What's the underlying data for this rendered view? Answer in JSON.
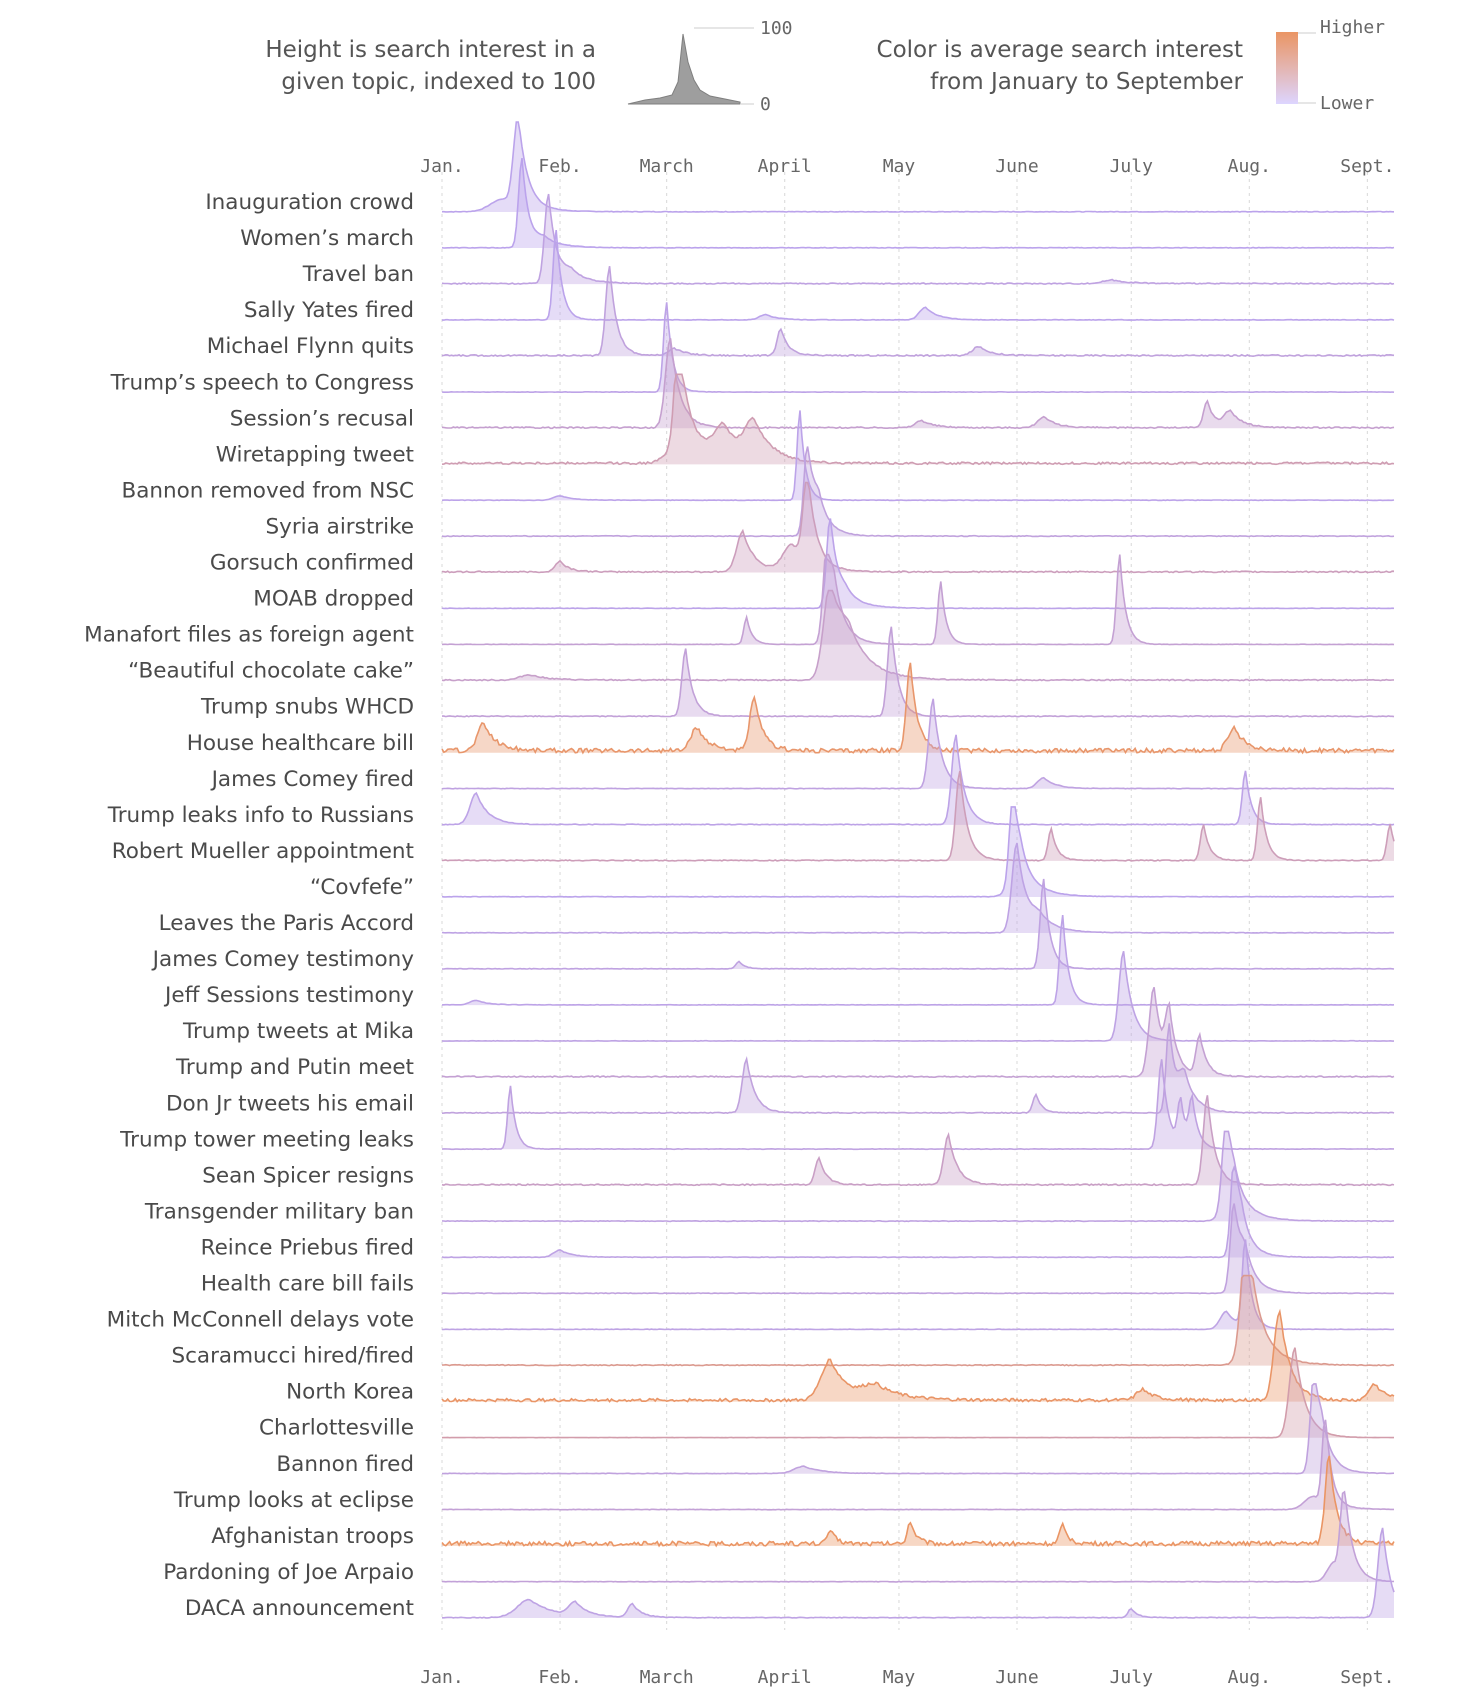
{
  "legend": {
    "height_text": [
      "Height is search interest in a",
      "given topic, indexed to 100"
    ],
    "height_scale": {
      "top": "100",
      "bottom": "0"
    },
    "color_text": [
      "Color is average search interest",
      "from January to September"
    ],
    "color_scale": {
      "top": "Higher",
      "bottom": "Lower"
    }
  },
  "colors": {
    "low": "#b9a4f2",
    "high": "#ea9564",
    "grid": "#d8d8d8"
  },
  "chart_data": {
    "type": "area",
    "title": "",
    "x_ticks": [
      "Jan.",
      "Feb.",
      "March",
      "April",
      "May",
      "June",
      "July",
      "Aug.",
      "Sept."
    ],
    "x_range": [
      "2017-01-01",
      "2017-09-08"
    ],
    "y_range": [
      0,
      100
    ],
    "series": [
      {
        "name": "Inauguration crowd",
        "avg_interest": 0.05,
        "peaks": [
          {
            "date": "2017-01-21",
            "value": 100,
            "width": 1.5
          },
          {
            "date": "2017-01-17",
            "value": 14,
            "width": 4
          }
        ],
        "noise": 0.6
      },
      {
        "name": "Women’s march",
        "avg_interest": 0.04,
        "peaks": [
          {
            "date": "2017-01-22",
            "value": 100,
            "width": 1.1
          },
          {
            "date": "2017-01-28",
            "value": 10,
            "width": 3
          }
        ],
        "noise": 0.6
      },
      {
        "name": "Travel ban",
        "avg_interest": 0.12,
        "peaks": [
          {
            "date": "2017-01-29",
            "value": 100,
            "width": 1.3
          },
          {
            "date": "2017-02-04",
            "value": 12,
            "width": 3
          },
          {
            "date": "2017-06-26",
            "value": 4,
            "width": 3
          }
        ],
        "noise": 1.2
      },
      {
        "name": "Sally Yates fired",
        "avg_interest": 0.05,
        "peaks": [
          {
            "date": "2017-01-31",
            "value": 100,
            "width": 1.0
          },
          {
            "date": "2017-05-08",
            "value": 14,
            "width": 2
          },
          {
            "date": "2017-03-27",
            "value": 6,
            "width": 2
          }
        ],
        "noise": 0.6
      },
      {
        "name": "Michael Flynn quits",
        "avg_interest": 0.15,
        "peaks": [
          {
            "date": "2017-02-14",
            "value": 100,
            "width": 1.2
          },
          {
            "date": "2017-03-31",
            "value": 30,
            "width": 1.2
          },
          {
            "date": "2017-05-22",
            "value": 10,
            "width": 2
          },
          {
            "date": "2017-03-03",
            "value": 8,
            "width": 2
          }
        ],
        "noise": 1.6
      },
      {
        "name": "Trump’s speech to Congress",
        "avg_interest": 0.08,
        "peaks": [
          {
            "date": "2017-03-01",
            "value": 100,
            "width": 1.0
          }
        ],
        "noise": 0.5
      },
      {
        "name": "Session’s recusal",
        "avg_interest": 0.25,
        "peaks": [
          {
            "date": "2017-03-02",
            "value": 100,
            "width": 1.6
          },
          {
            "date": "2017-07-21",
            "value": 30,
            "width": 1.2
          },
          {
            "date": "2017-07-27",
            "value": 18,
            "width": 2
          },
          {
            "date": "2017-06-08",
            "value": 12,
            "width": 2
          },
          {
            "date": "2017-05-07",
            "value": 8,
            "width": 2
          }
        ],
        "noise": 1.5
      },
      {
        "name": "Wiretapping tweet",
        "avg_interest": 0.45,
        "peaks": [
          {
            "date": "2017-03-04",
            "value": 100,
            "width": 1.2
          },
          {
            "date": "2017-03-06",
            "value": 45,
            "width": 4
          },
          {
            "date": "2017-03-16",
            "value": 35,
            "width": 3
          },
          {
            "date": "2017-03-24",
            "value": 40,
            "width": 3
          }
        ],
        "noise": 2.5
      },
      {
        "name": "Bannon removed from NSC",
        "avg_interest": 0.06,
        "peaks": [
          {
            "date": "2017-04-05",
            "value": 100,
            "width": 0.9
          },
          {
            "date": "2017-02-01",
            "value": 5,
            "width": 2
          }
        ],
        "noise": 0.5
      },
      {
        "name": "Syria airstrike",
        "avg_interest": 0.15,
        "peaks": [
          {
            "date": "2017-04-07",
            "value": 100,
            "width": 1.2
          },
          {
            "date": "2017-04-10",
            "value": 30,
            "width": 2
          }
        ],
        "noise": 0.8
      },
      {
        "name": "Gorsuch confirmed",
        "avg_interest": 0.38,
        "peaks": [
          {
            "date": "2017-04-07",
            "value": 100,
            "width": 1.4
          },
          {
            "date": "2017-03-21",
            "value": 45,
            "width": 2
          },
          {
            "date": "2017-04-03",
            "value": 30,
            "width": 3
          },
          {
            "date": "2017-02-01",
            "value": 12,
            "width": 1.5
          }
        ],
        "noise": 1.5
      },
      {
        "name": "MOAB dropped",
        "avg_interest": 0.06,
        "peaks": [
          {
            "date": "2017-04-13",
            "value": 100,
            "width": 1.2
          },
          {
            "date": "2017-04-17",
            "value": 15,
            "width": 3
          }
        ],
        "noise": 0.5
      },
      {
        "name": "Manafort files as foreign agent",
        "avg_interest": 0.22,
        "peaks": [
          {
            "date": "2017-04-12",
            "value": 90,
            "width": 1.2
          },
          {
            "date": "2017-06-28",
            "value": 100,
            "width": 1.0
          },
          {
            "date": "2017-04-14",
            "value": 50,
            "width": 2.0
          },
          {
            "date": "2017-05-12",
            "value": 70,
            "width": 0.9
          },
          {
            "date": "2017-03-22",
            "value": 30,
            "width": 0.9
          }
        ],
        "noise": 0.5
      },
      {
        "name": "“Beautiful chocolate cake”",
        "avg_interest": 0.28,
        "peaks": [
          {
            "date": "2017-04-13",
            "value": 100,
            "width": 2.2
          },
          {
            "date": "2017-04-18",
            "value": 40,
            "width": 4
          },
          {
            "date": "2017-01-24",
            "value": 6,
            "width": 3
          }
        ],
        "noise": 1.3
      },
      {
        "name": "Trump snubs WHCD",
        "avg_interest": 0.18,
        "peaks": [
          {
            "date": "2017-04-29",
            "value": 100,
            "width": 1.2
          },
          {
            "date": "2017-03-06",
            "value": 75,
            "width": 1.2
          }
        ],
        "noise": 1.0
      },
      {
        "name": "House healthcare bill",
        "avg_interest": 0.95,
        "peaks": [
          {
            "date": "2017-05-04",
            "value": 100,
            "width": 1.2
          },
          {
            "date": "2017-03-24",
            "value": 60,
            "width": 1.4
          },
          {
            "date": "2017-01-12",
            "value": 30,
            "width": 2
          },
          {
            "date": "2017-03-09",
            "value": 25,
            "width": 2
          },
          {
            "date": "2017-07-28",
            "value": 25,
            "width": 2
          }
        ],
        "noise": 5
      },
      {
        "name": "James Comey fired",
        "avg_interest": 0.12,
        "peaks": [
          {
            "date": "2017-05-10",
            "value": 100,
            "width": 1.4
          },
          {
            "date": "2017-06-08",
            "value": 12,
            "width": 2
          }
        ],
        "noise": 0.6
      },
      {
        "name": "Trump leaks info to Russians",
        "avg_interest": 0.08,
        "peaks": [
          {
            "date": "2017-05-16",
            "value": 100,
            "width": 1.4
          },
          {
            "date": "2017-01-10",
            "value": 35,
            "width": 2
          },
          {
            "date": "2017-07-31",
            "value": 60,
            "width": 1.0
          }
        ],
        "noise": 0.8
      },
      {
        "name": "Robert Mueller appointment",
        "avg_interest": 0.4,
        "peaks": [
          {
            "date": "2017-05-17",
            "value": 100,
            "width": 1.3
          },
          {
            "date": "2017-06-10",
            "value": 35,
            "width": 1
          },
          {
            "date": "2017-07-20",
            "value": 40,
            "width": 1
          },
          {
            "date": "2017-08-04",
            "value": 70,
            "width": 1
          },
          {
            "date": "2017-09-07",
            "value": 40,
            "width": 1
          }
        ],
        "noise": 1
      },
      {
        "name": "“Covfefe”",
        "avg_interest": 0.05,
        "peaks": [
          {
            "date": "2017-05-31",
            "value": 100,
            "width": 1.2
          },
          {
            "date": "2017-06-02",
            "value": 30,
            "width": 3
          }
        ],
        "noise": 0.5
      },
      {
        "name": "Leaves the Paris Accord",
        "avg_interest": 0.1,
        "peaks": [
          {
            "date": "2017-06-01",
            "value": 100,
            "width": 1.6
          },
          {
            "date": "2017-06-07",
            "value": 15,
            "width": 3
          }
        ],
        "noise": 0.6
      },
      {
        "name": "James Comey testimony",
        "avg_interest": 0.12,
        "peaks": [
          {
            "date": "2017-06-08",
            "value": 100,
            "width": 1.1
          },
          {
            "date": "2017-03-20",
            "value": 8,
            "width": 1
          }
        ],
        "noise": 0.6
      },
      {
        "name": "Jeff Sessions testimony",
        "avg_interest": 0.08,
        "peaks": [
          {
            "date": "2017-06-13",
            "value": 100,
            "width": 1.0
          },
          {
            "date": "2017-01-10",
            "value": 5,
            "width": 2
          }
        ],
        "noise": 0.5
      },
      {
        "name": "Trump tweets at Mika",
        "avg_interest": 0.1,
        "peaks": [
          {
            "date": "2017-06-29",
            "value": 100,
            "width": 1.5
          }
        ],
        "noise": 0.5
      },
      {
        "name": "Trump and Putin meet",
        "avg_interest": 0.22,
        "peaks": [
          {
            "date": "2017-07-07",
            "value": 100,
            "width": 1.6
          },
          {
            "date": "2017-07-11",
            "value": 60,
            "width": 1.2
          },
          {
            "date": "2017-07-19",
            "value": 45,
            "width": 1.2
          }
        ],
        "noise": 1.3
      },
      {
        "name": "Don Jr tweets his email",
        "avg_interest": 0.15,
        "peaks": [
          {
            "date": "2017-07-11",
            "value": 100,
            "width": 1.0
          },
          {
            "date": "2017-03-22",
            "value": 60,
            "width": 1.4
          },
          {
            "date": "2017-07-15",
            "value": 40,
            "width": 2
          },
          {
            "date": "2017-06-06",
            "value": 20,
            "width": 1
          }
        ],
        "noise": 1.0
      },
      {
        "name": "Trump tower meeting leaks",
        "avg_interest": 0.12,
        "peaks": [
          {
            "date": "2017-07-09",
            "value": 100,
            "width": 1.2
          },
          {
            "date": "2017-01-19",
            "value": 70,
            "width": 0.9
          },
          {
            "date": "2017-07-14",
            "value": 50,
            "width": 1
          },
          {
            "date": "2017-07-17",
            "value": 50,
            "width": 1
          }
        ],
        "noise": 0.6
      },
      {
        "name": "Sean Spicer resigns",
        "avg_interest": 0.32,
        "peaks": [
          {
            "date": "2017-07-21",
            "value": 100,
            "width": 1.3
          },
          {
            "date": "2017-05-14",
            "value": 55,
            "width": 1.5
          },
          {
            "date": "2017-04-10",
            "value": 30,
            "width": 1.2
          }
        ],
        "noise": 1.4
      },
      {
        "name": "Transgender military ban",
        "avg_interest": 0.12,
        "peaks": [
          {
            "date": "2017-07-26",
            "value": 100,
            "width": 1.3
          },
          {
            "date": "2017-07-28",
            "value": 30,
            "width": 3
          }
        ],
        "noise": 0.7
      },
      {
        "name": "Reince Priebus fired",
        "avg_interest": 0.1,
        "peaks": [
          {
            "date": "2017-07-28",
            "value": 100,
            "width": 1.1
          },
          {
            "date": "2017-07-30",
            "value": 30,
            "width": 2
          },
          {
            "date": "2017-02-01",
            "value": 8,
            "width": 2
          }
        ],
        "noise": 0.6
      },
      {
        "name": "Health care bill fails",
        "avg_interest": 0.14,
        "peaks": [
          {
            "date": "2017-07-28",
            "value": 100,
            "width": 1.2
          },
          {
            "date": "2017-07-31",
            "value": 35,
            "width": 2
          }
        ],
        "noise": 0.6
      },
      {
        "name": "Mitch McConnell delays vote",
        "avg_interest": 0.1,
        "peaks": [
          {
            "date": "2017-07-31",
            "value": 100,
            "width": 1.0
          },
          {
            "date": "2017-07-26",
            "value": 20,
            "width": 2
          }
        ],
        "noise": 0.5
      },
      {
        "name": "Scaramucci hired/fired",
        "avg_interest": 0.7,
        "peaks": [
          {
            "date": "2017-07-31",
            "value": 100,
            "width": 1.6
          },
          {
            "date": "2017-08-02",
            "value": 50,
            "width": 3
          }
        ],
        "noise": 1
      },
      {
        "name": "North Korea",
        "avg_interest": 0.98,
        "peaks": [
          {
            "date": "2017-08-09",
            "value": 100,
            "width": 1.8
          },
          {
            "date": "2017-04-13",
            "value": 45,
            "width": 3
          },
          {
            "date": "2017-04-25",
            "value": 15,
            "width": 4
          },
          {
            "date": "2017-07-04",
            "value": 12,
            "width": 2
          },
          {
            "date": "2017-09-03",
            "value": 18,
            "width": 2
          }
        ],
        "noise": 3.5
      },
      {
        "name": "Charlottesville",
        "avg_interest": 0.5,
        "peaks": [
          {
            "date": "2017-08-13",
            "value": 100,
            "width": 1.8
          }
        ],
        "noise": 0.3
      },
      {
        "name": "Bannon fired",
        "avg_interest": 0.14,
        "peaks": [
          {
            "date": "2017-08-18",
            "value": 100,
            "width": 1.2
          },
          {
            "date": "2017-08-20",
            "value": 35,
            "width": 2
          },
          {
            "date": "2017-04-06",
            "value": 8,
            "width": 3
          }
        ],
        "noise": 0.6
      },
      {
        "name": "Trump looks at eclipse",
        "avg_interest": 0.2,
        "peaks": [
          {
            "date": "2017-08-21",
            "value": 100,
            "width": 1.0
          },
          {
            "date": "2017-08-18",
            "value": 15,
            "width": 3
          }
        ],
        "noise": 0.6
      },
      {
        "name": "Afghanistan troops",
        "avg_interest": 1.0,
        "peaks": [
          {
            "date": "2017-08-22",
            "value": 100,
            "width": 1.3
          },
          {
            "date": "2017-05-04",
            "value": 25,
            "width": 1
          },
          {
            "date": "2017-06-13",
            "value": 20,
            "width": 1
          },
          {
            "date": "2017-04-13",
            "value": 15,
            "width": 1
          }
        ],
        "noise": 5
      },
      {
        "name": "Pardoning of Joe Arpaio",
        "avg_interest": 0.18,
        "peaks": [
          {
            "date": "2017-08-26",
            "value": 100,
            "width": 1.3
          },
          {
            "date": "2017-08-23",
            "value": 20,
            "width": 2
          }
        ],
        "noise": 0.5
      },
      {
        "name": "DACA announcement",
        "avg_interest": 0.1,
        "peaks": [
          {
            "date": "2017-09-05",
            "value": 100,
            "width": 1.5
          },
          {
            "date": "2017-01-24",
            "value": 20,
            "width": 4
          },
          {
            "date": "2017-02-05",
            "value": 15,
            "width": 2
          },
          {
            "date": "2017-02-20",
            "value": 15,
            "width": 1.5
          },
          {
            "date": "2017-07-01",
            "value": 10,
            "width": 1
          }
        ],
        "noise": 0.8
      }
    ]
  }
}
